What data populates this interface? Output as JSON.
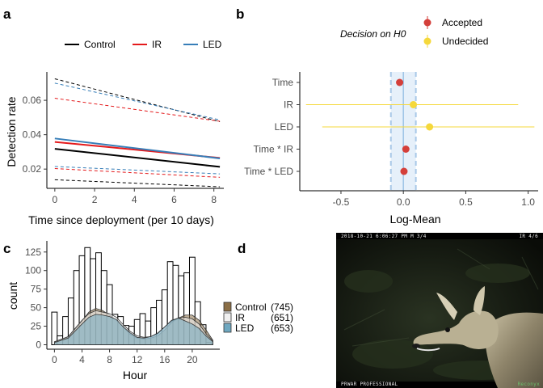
{
  "panel_labels": [
    "a",
    "b",
    "c",
    "d"
  ],
  "chart_data": [
    {
      "panel": "a",
      "type": "line",
      "xlabel": "Time since deployment (per 10 days)",
      "ylabel": "Detection rate",
      "xlim": [
        -0.4,
        8.5
      ],
      "ylim": [
        0.0088,
        0.0765
      ],
      "xticks": [
        0,
        2,
        4,
        6,
        8
      ],
      "yticks": [
        0.02,
        0.04,
        0.06
      ],
      "ytick_labels": [
        "0.02",
        "0.04",
        "0.06"
      ],
      "grid": false,
      "legend_position": "top",
      "series": [
        {
          "name": "Control",
          "color": "#000000",
          "x": [
            0,
            8.3
          ],
          "fit": [
            0.0318,
            0.0213
          ],
          "lower": [
            0.0138,
            0.0097
          ],
          "upper": [
            0.0725,
            0.0476
          ]
        },
        {
          "name": "IR",
          "color": "#e41a1c",
          "x": [
            0,
            8.3
          ],
          "fit": [
            0.0358,
            0.0265
          ],
          "lower": [
            0.0203,
            0.0152
          ],
          "upper": [
            0.0612,
            0.0478
          ]
        },
        {
          "name": "LED",
          "color": "#377eb8",
          "x": [
            0,
            8.3
          ],
          "fit": [
            0.0378,
            0.0262
          ],
          "lower": [
            0.0215,
            0.0172
          ],
          "upper": [
            0.07,
            0.0486
          ]
        }
      ]
    },
    {
      "panel": "b",
      "type": "scatter",
      "xlabel": "Log-Mean",
      "ylabel": "",
      "xlim": [
        -0.83,
        1.08
      ],
      "xticks": [
        -0.5,
        0.0,
        0.5,
        1.0
      ],
      "xtick_labels": [
        "-0.5",
        "0.0",
        "0.5",
        "1.0"
      ],
      "categories": [
        "Time",
        "IR",
        "LED",
        "Time * IR",
        "Time * LED"
      ],
      "estimates": [
        {
          "term": "Time",
          "mean": -0.03,
          "lower": -0.04,
          "upper": -0.02,
          "decision": "Accepted"
        },
        {
          "term": "IR",
          "mean": 0.08,
          "lower": -0.78,
          "upper": 0.92,
          "decision": "Undecided"
        },
        {
          "term": "LED",
          "mean": 0.21,
          "lower": -0.65,
          "upper": 1.05,
          "decision": "Undecided"
        },
        {
          "term": "Time * IR",
          "mean": 0.02,
          "lower": 0.01,
          "upper": 0.03,
          "decision": "Accepted"
        },
        {
          "term": "Time * LED",
          "mean": 0.005,
          "lower": -0.005,
          "upper": 0.015,
          "decision": "Accepted"
        }
      ],
      "rope": [
        -0.1,
        0.1
      ],
      "reference_line": 0,
      "legend_title": "Decision on H0",
      "legend_entries": [
        {
          "label": "Accepted",
          "color": "#d43f3a"
        },
        {
          "label": "Undecided",
          "color": "#f5d83b"
        }
      ],
      "grid": false
    },
    {
      "panel": "c",
      "type": "bar",
      "xlabel": "Hour",
      "ylabel": "count",
      "xlim": [
        -1.1,
        24
      ],
      "ylim": [
        -6,
        140
      ],
      "xticks": [
        0,
        4,
        8,
        12,
        16,
        20
      ],
      "yticks": [
        0,
        25,
        50,
        75,
        100,
        125
      ],
      "bin_width": 0.8,
      "bins_x": [
        0.0,
        0.8,
        1.6,
        2.4,
        3.2,
        4.0,
        4.8,
        5.6,
        6.4,
        7.2,
        8.0,
        8.8,
        9.6,
        10.4,
        11.2,
        12.0,
        12.8,
        13.6,
        14.4,
        15.2,
        16.0,
        16.8,
        17.6,
        18.4,
        19.2,
        20.0,
        20.8,
        21.6,
        22.4
      ],
      "bins_count": [
        44,
        12,
        38,
        63,
        100,
        120,
        131,
        116,
        124,
        100,
        81,
        41,
        38,
        26,
        25,
        34,
        42,
        32,
        50,
        60,
        74,
        112,
        107,
        93,
        97,
        118,
        58,
        27,
        3
      ],
      "density_x": [
        0,
        2,
        4,
        5,
        6,
        7,
        8,
        9,
        10,
        11,
        12,
        13,
        14,
        15,
        16,
        17,
        18,
        19,
        20,
        21,
        22,
        23
      ],
      "series": [
        {
          "name": "Control",
          "count": 745,
          "color": "#8b6f47",
          "density": [
            4,
            10,
            32,
            44,
            49,
            46,
            40,
            33,
            24,
            14,
            9,
            8,
            9,
            12,
            20,
            30,
            36,
            40,
            40,
            33,
            20,
            6
          ]
        },
        {
          "name": "IR",
          "count": 651,
          "color": "#f0f0f0",
          "density": [
            4,
            11,
            33,
            42,
            46,
            44,
            42,
            37,
            27,
            18,
            12,
            10,
            11,
            15,
            24,
            32,
            36,
            37,
            35,
            28,
            15,
            5
          ]
        },
        {
          "name": "LED",
          "count": 653,
          "color": "#6fa8c0",
          "density": [
            3,
            9,
            28,
            37,
            41,
            40,
            38,
            34,
            24,
            16,
            10,
            9,
            11,
            16,
            24,
            33,
            36,
            32,
            28,
            22,
            12,
            4
          ]
        }
      ],
      "legend_position": "right",
      "grid": false
    }
  ],
  "legend_c": [
    {
      "label": "Control",
      "count_label": "(745)"
    },
    {
      "label": "IR",
      "count_label": "(651)"
    },
    {
      "label": "LED",
      "count_label": "(653)"
    }
  ],
  "photo": {
    "timestamp": "2018-10-21 6:06:27 PM  M 3/4",
    "corner_text": "IR  4/6",
    "bottom_text": "PRWAR PROFESSIONAL",
    "brand_text": "Reconyx"
  }
}
